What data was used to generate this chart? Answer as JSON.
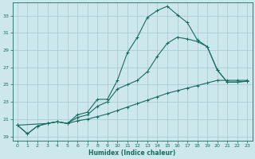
{
  "xlabel": "Humidex (Indice chaleur)",
  "ylabel": "",
  "bg_color": "#cce8ec",
  "grid_color": "#aacdd4",
  "line_color": "#1a6b60",
  "xlim": [
    -0.5,
    23.5
  ],
  "ylim": [
    18.5,
    34.5
  ],
  "xticks": [
    0,
    1,
    2,
    3,
    4,
    5,
    6,
    7,
    8,
    9,
    10,
    11,
    12,
    13,
    14,
    15,
    16,
    17,
    18,
    19,
    20,
    21,
    22,
    23
  ],
  "yticks": [
    19,
    21,
    23,
    25,
    27,
    29,
    31,
    33
  ],
  "line1_x": [
    0,
    1,
    2,
    3,
    4,
    5,
    6,
    7,
    8,
    9,
    10,
    11,
    12,
    13,
    14,
    15,
    16,
    17,
    18,
    19,
    20,
    21,
    22,
    23
  ],
  "line1_y": [
    20.3,
    19.3,
    20.2,
    20.5,
    20.7,
    20.5,
    21.5,
    21.8,
    23.3,
    23.3,
    25.5,
    28.7,
    30.5,
    32.8,
    33.6,
    34.1,
    33.1,
    32.2,
    30.2,
    29.4,
    26.7,
    25.3,
    25.3,
    25.4
  ],
  "line2_x": [
    0,
    3,
    4,
    5,
    6,
    7,
    8,
    9,
    10,
    11,
    12,
    13,
    14,
    15,
    16,
    17,
    18,
    19,
    20,
    21,
    22,
    23
  ],
  "line2_y": [
    20.3,
    20.5,
    20.7,
    20.5,
    21.2,
    21.5,
    22.5,
    23.0,
    24.5,
    25.0,
    25.5,
    26.5,
    28.3,
    29.8,
    30.5,
    30.3,
    30.0,
    29.4,
    26.7,
    25.3,
    25.3,
    25.4
  ],
  "line3_x": [
    0,
    1,
    2,
    3,
    4,
    5,
    6,
    7,
    8,
    9,
    10,
    11,
    12,
    13,
    14,
    15,
    16,
    17,
    18,
    19,
    20,
    21,
    22,
    23
  ],
  "line3_y": [
    20.3,
    19.3,
    20.2,
    20.5,
    20.7,
    20.5,
    20.8,
    21.0,
    21.3,
    21.6,
    22.0,
    22.4,
    22.8,
    23.2,
    23.6,
    24.0,
    24.3,
    24.6,
    24.9,
    25.2,
    25.5,
    25.5,
    25.5,
    25.5
  ]
}
